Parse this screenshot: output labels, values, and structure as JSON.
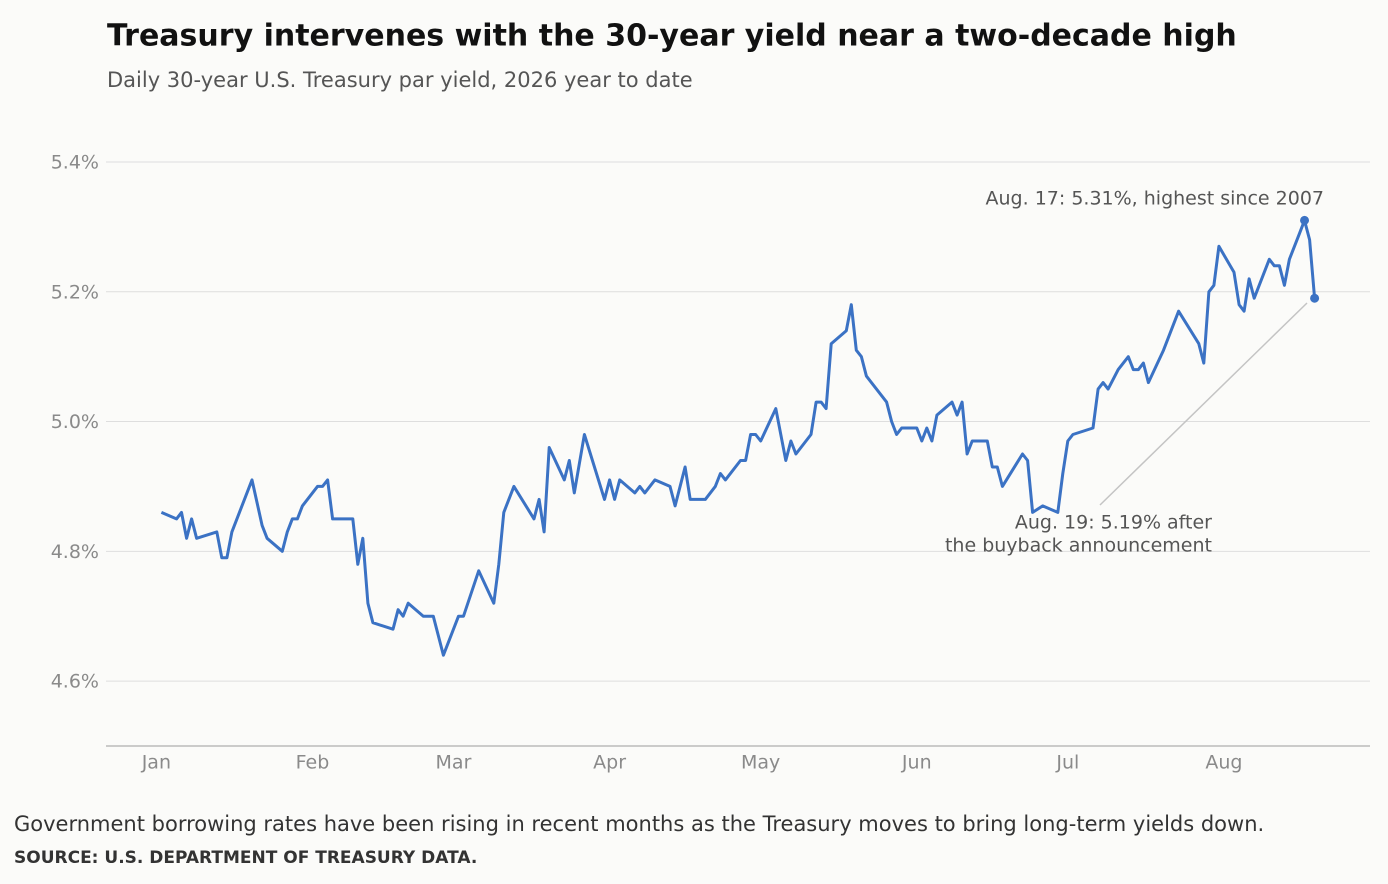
{
  "chart_data": {
    "type": "line",
    "title": "Treasury intervenes with the 30-year yield near a two-decade high",
    "subtitle": "Daily 30-year U.S. Treasury par yield, 2026 year to date",
    "x": [
      2,
      5,
      6,
      7,
      8,
      9,
      13,
      14,
      15,
      16,
      20,
      22,
      23,
      26,
      27,
      28,
      29,
      30,
      33,
      34,
      35,
      36,
      40,
      41,
      42,
      43,
      44,
      48,
      49,
      50,
      51,
      54,
      56,
      58,
      61,
      62,
      65,
      68,
      69,
      70,
      72,
      76,
      77,
      78,
      79,
      82,
      83,
      84,
      86,
      90,
      91,
      92,
      93,
      96,
      97,
      98,
      100,
      103,
      104,
      106,
      107,
      110,
      112,
      113,
      114,
      117,
      118,
      119,
      120,
      121,
      124,
      126,
      127,
      128,
      131,
      132,
      133,
      134,
      135,
      138,
      139,
      140,
      141,
      142,
      146,
      147,
      148,
      149,
      152,
      153,
      154,
      155,
      156,
      159,
      160,
      161,
      162,
      163,
      166,
      167,
      168,
      169,
      173,
      174,
      175,
      177,
      180,
      181,
      182,
      183,
      187,
      188,
      189,
      190,
      192,
      194,
      195,
      196,
      197,
      198,
      201,
      204,
      208,
      209,
      210,
      211,
      212,
      215,
      216,
      217,
      218,
      219,
      222,
      223,
      224,
      225,
      226,
      228,
      229,
      230,
      231
    ],
    "values": [
      4.86,
      4.85,
      4.86,
      4.82,
      4.85,
      4.82,
      4.83,
      4.79,
      4.79,
      4.83,
      4.91,
      4.84,
      4.82,
      4.8,
      4.83,
      4.85,
      4.85,
      4.87,
      4.9,
      4.9,
      4.91,
      4.85,
      4.85,
      4.78,
      4.82,
      4.72,
      4.69,
      4.68,
      4.71,
      4.7,
      4.72,
      4.7,
      4.7,
      4.64,
      4.7,
      4.7,
      4.77,
      4.72,
      4.78,
      4.86,
      4.9,
      4.85,
      4.88,
      4.83,
      4.96,
      4.91,
      4.94,
      4.89,
      4.98,
      4.88,
      4.91,
      4.88,
      4.91,
      4.89,
      4.9,
      4.89,
      4.91,
      4.9,
      4.87,
      4.93,
      4.88,
      4.88,
      4.9,
      4.92,
      4.91,
      4.94,
      4.94,
      4.98,
      4.98,
      4.97,
      5.02,
      4.94,
      4.97,
      4.95,
      4.98,
      5.03,
      5.03,
      5.02,
      5.12,
      5.14,
      5.18,
      5.11,
      5.1,
      5.07,
      5.03,
      5.0,
      4.98,
      4.99,
      4.99,
      4.97,
      4.99,
      4.97,
      5.01,
      5.03,
      5.01,
      5.03,
      4.95,
      4.97,
      4.97,
      4.93,
      4.93,
      4.9,
      4.95,
      4.94,
      4.86,
      4.87,
      4.86,
      4.92,
      4.97,
      4.98,
      4.99,
      5.05,
      5.06,
      5.05,
      5.08,
      5.1,
      5.08,
      5.08,
      5.09,
      5.06,
      5.11,
      5.17,
      5.12,
      5.09,
      5.2,
      5.21,
      5.27,
      5.23,
      5.18,
      5.17,
      5.22,
      5.19,
      5.25,
      5.24,
      5.24,
      5.21,
      5.25,
      5.29,
      5.31,
      5.28,
      5.19
    ],
    "color": "#3b72c4",
    "xlim": [
      -9,
      242
    ],
    "xticks": [
      {
        "value": 1,
        "label": "Jan"
      },
      {
        "value": 32,
        "label": "Feb"
      },
      {
        "value": 60,
        "label": "Mar"
      },
      {
        "value": 91,
        "label": "Apr"
      },
      {
        "value": 121,
        "label": "May"
      },
      {
        "value": 152,
        "label": "Jun"
      },
      {
        "value": 182,
        "label": "Jul"
      },
      {
        "value": 213,
        "label": "Aug"
      }
    ],
    "ylim": [
      4.5,
      5.42
    ],
    "yticks": [
      {
        "value": 4.6,
        "label": "4.6%"
      },
      {
        "value": 4.8,
        "label": "4.8%"
      },
      {
        "value": 5.0,
        "label": "5.0%"
      },
      {
        "value": 5.2,
        "label": "5.2%"
      },
      {
        "value": 5.4,
        "label": "5.4%"
      }
    ],
    "grid": true,
    "annotations": [
      "Aug. 17: 5.31%, highest since 2007",
      [
        "Aug. 19: 5.19% after",
        "the buyback announcement"
      ]
    ],
    "caption": "Government borrowing rates have been rising in recent months as the Treasury moves to bring long-term yields down.",
    "source": "SOURCE: U.S. DEPARTMENT OF TREASURY DATA."
  }
}
